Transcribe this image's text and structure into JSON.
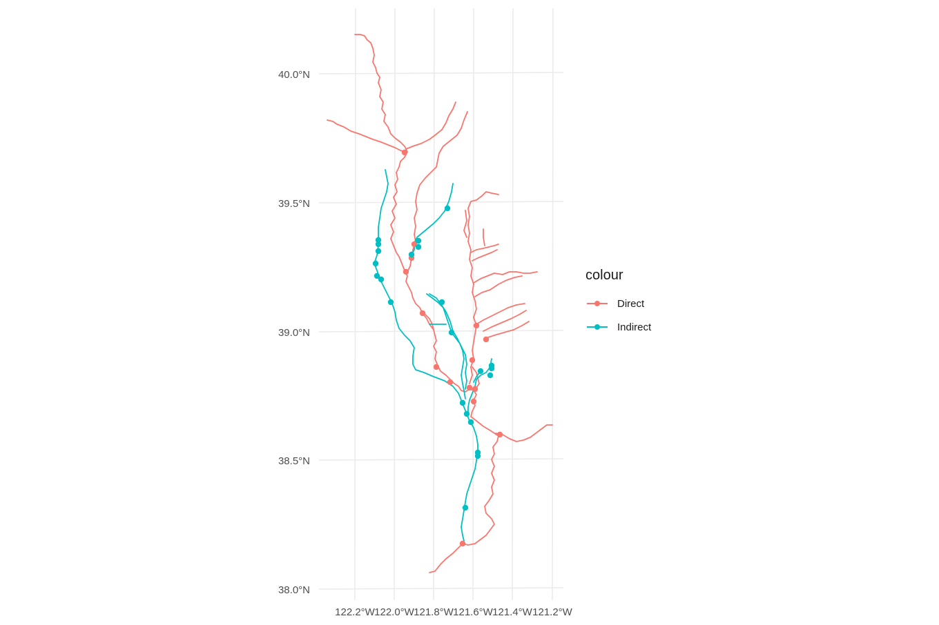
{
  "map": {
    "x_ticks": [
      "122.2°W",
      "122.0°W",
      "121.8°W",
      "121.6°W",
      "121.4°W",
      "121.2°W"
    ],
    "y_ticks": [
      "40.0°N",
      "39.5°N",
      "39.0°N",
      "38.5°N",
      "38.0°N"
    ],
    "gridlines": true,
    "legend_position": "right"
  },
  "legend": {
    "title": "colour",
    "items": [
      {
        "label": "Direct",
        "color": "#F8766D"
      },
      {
        "label": "Indirect",
        "color": "#00BFC4"
      }
    ]
  },
  "colors": {
    "direct": "#F8766D",
    "indirect": "#00BFC4",
    "grid": "#EBEBEB"
  }
}
